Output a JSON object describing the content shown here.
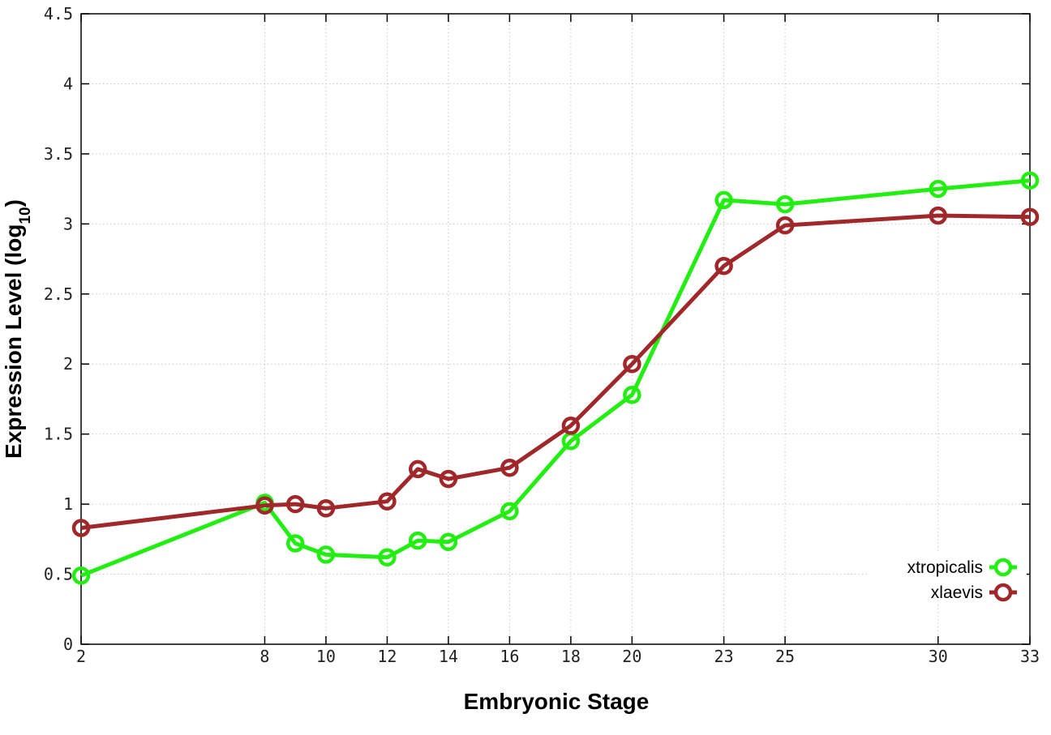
{
  "chart_data": {
    "type": "line",
    "xlabel": "Embryonic Stage",
    "ylabel_main": "Expression Level (log",
    "ylabel_sub": "10",
    "ylabel_close": ")",
    "xlim": [
      2,
      33
    ],
    "ylim": [
      0,
      4.5
    ],
    "x_ticks": [
      2,
      8,
      10,
      12,
      14,
      16,
      18,
      20,
      23,
      25,
      30,
      33
    ],
    "x_tick_labels": [
      "2",
      "8",
      "10",
      "12",
      "14",
      "16",
      "18",
      "20",
      "23",
      "25",
      "30",
      "33"
    ],
    "y_ticks": [
      0,
      0.5,
      1,
      1.5,
      2,
      2.5,
      3,
      3.5,
      4,
      4.5
    ],
    "y_tick_labels": [
      "0",
      "0.5",
      "1",
      "1.5",
      "2",
      "2.5",
      "3",
      "3.5",
      "4",
      "4.5"
    ],
    "grid": true,
    "legend_position": "bottom-right",
    "series": [
      {
        "name": "xtropicalis",
        "color": "#22ee11",
        "points": [
          [
            2,
            0.49
          ],
          [
            8,
            1.01
          ],
          [
            9,
            0.72
          ],
          [
            10,
            0.64
          ],
          [
            12,
            0.62
          ],
          [
            13,
            0.74
          ],
          [
            14,
            0.73
          ],
          [
            16,
            0.95
          ],
          [
            18,
            1.45
          ],
          [
            20,
            1.78
          ],
          [
            23,
            3.17
          ],
          [
            25,
            3.14
          ],
          [
            30,
            3.25
          ],
          [
            33,
            3.31
          ]
        ]
      },
      {
        "name": "xlaevis",
        "color": "#a0282a",
        "points": [
          [
            2,
            0.83
          ],
          [
            8,
            0.99
          ],
          [
            9,
            1.0
          ],
          [
            10,
            0.97
          ],
          [
            12,
            1.02
          ],
          [
            13,
            1.25
          ],
          [
            14,
            1.18
          ],
          [
            16,
            1.26
          ],
          [
            18,
            1.56
          ],
          [
            20,
            2.0
          ],
          [
            23,
            2.7
          ],
          [
            25,
            2.99
          ],
          [
            30,
            3.06
          ],
          [
            33,
            3.05
          ]
        ]
      }
    ]
  }
}
